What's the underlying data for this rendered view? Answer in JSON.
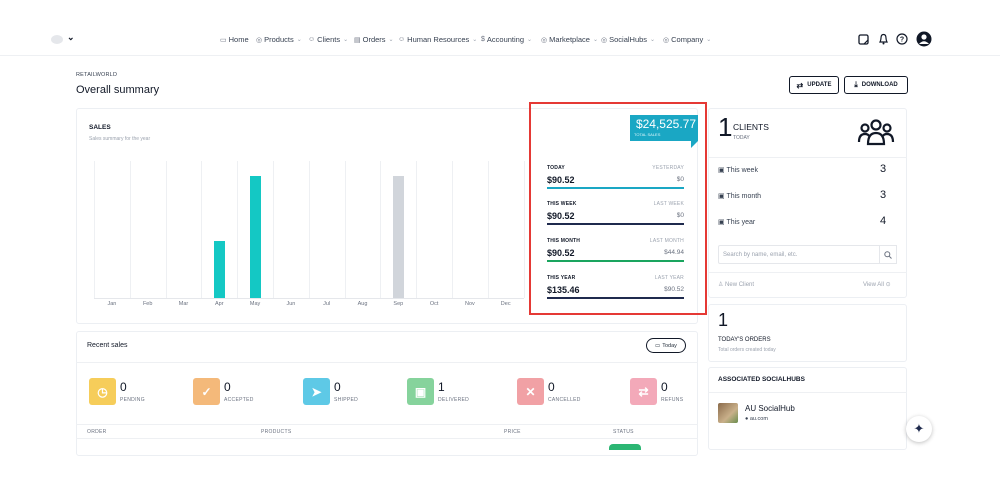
{
  "nav": {
    "items": [
      {
        "icon": "▭",
        "label": "Home",
        "caret": ""
      },
      {
        "icon": "◎",
        "label": "Products",
        "caret": "⌄"
      },
      {
        "icon": "☺",
        "label": "Clients",
        "caret": "⌄"
      },
      {
        "icon": "▤",
        "label": "Orders",
        "caret": "⌄"
      },
      {
        "icon": "☺",
        "label": "Human Resources",
        "caret": "⌄"
      },
      {
        "icon": "$",
        "label": "Accounting",
        "caret": "⌄"
      },
      {
        "icon": "◎",
        "label": "Marketplace",
        "caret": "⌄"
      },
      {
        "icon": "◎",
        "label": "SocialHubs",
        "caret": "⌄"
      },
      {
        "icon": "◎",
        "label": "Company",
        "caret": "⌄"
      }
    ],
    "logo_caret": "⌄"
  },
  "page": {
    "breadcrumb": "RETAILWORLD",
    "title": "Overall summary"
  },
  "toolbar": {
    "update_label": "UPDATE",
    "download_label": "DOWNLOAD"
  },
  "sales": {
    "title": "SALES",
    "subtitle": "Sales summary for the year"
  },
  "chart_data": {
    "type": "bar",
    "categories": [
      "Jan",
      "Feb",
      "Mar",
      "Apr",
      "May",
      "Jun",
      "Jul",
      "Aug",
      "Sep",
      "Oct",
      "Nov",
      "Dec"
    ],
    "values": [
      0,
      0,
      0,
      31,
      66,
      0,
      0,
      0,
      66,
      0,
      0,
      0
    ],
    "bar_colors": [
      "#14c8c4",
      "#14c8c4",
      "#14c8c4",
      "#14c8c4",
      "#14c8c4",
      "#14c8c4",
      "#14c8c4",
      "#14c8c4",
      "#d1d5db",
      "#14c8c4",
      "#14c8c4",
      "#14c8c4"
    ],
    "ylim": [
      0,
      66
    ]
  },
  "summary": {
    "total": "$24,525.77",
    "total_label": "TOTAL SALES",
    "stats": [
      {
        "label": "TODAY",
        "compare": "YESTERDAY",
        "value": "$90.52",
        "prev": "$0",
        "color": "#1aa7c4"
      },
      {
        "label": "THIS WEEK",
        "compare": "LAST WEEK",
        "value": "$90.52",
        "prev": "$0",
        "color": "#1f2a4d"
      },
      {
        "label": "THIS MONTH",
        "compare": "LAST MONTH",
        "value": "$90.52",
        "prev": "$44.94",
        "color": "#1aa55f"
      },
      {
        "label": "THIS YEAR",
        "compare": "LAST YEAR",
        "value": "$135.46",
        "prev": "$90.52",
        "color": "#1f2a4d"
      }
    ]
  },
  "clients": {
    "count": "1",
    "title": "CLIENTS",
    "subtitle": "TODAY",
    "rows": [
      {
        "label": "This week",
        "value": "3"
      },
      {
        "label": "This month",
        "value": "3"
      },
      {
        "label": "This year",
        "value": "4"
      }
    ],
    "search_placeholder": "Search by name, email, etc.",
    "new_client": "New Client",
    "view_all": "View All"
  },
  "orders": {
    "count": "1",
    "title": "TODAY'S ORDERS",
    "subtitle": "Total orders created today"
  },
  "socialhubs": {
    "title": "ASSOCIATED SOCIALHUBS",
    "name": "AU SocialHub",
    "domain": "au.com"
  },
  "recent": {
    "title": "Recent sales",
    "filter": "Today",
    "tiles": [
      {
        "count": "0",
        "label": "PENDING",
        "color": "#f6cd5a",
        "icon": "◷"
      },
      {
        "count": "0",
        "label": "ACCEPTED",
        "color": "#f4b97a",
        "icon": "✓"
      },
      {
        "count": "0",
        "label": "SHIPPED",
        "color": "#5ec9e6",
        "icon": "➤"
      },
      {
        "count": "1",
        "label": "DELIVERED",
        "color": "#86d39c",
        "icon": "▣"
      },
      {
        "count": "0",
        "label": "CANCELLED",
        "color": "#f1a1a5",
        "icon": "✕"
      },
      {
        "count": "0",
        "label": "REFUNS",
        "color": "#f3a9b9",
        "icon": "⇄"
      }
    ],
    "columns": [
      "ORDER",
      "PRODUCTS",
      "PRICE",
      "STATUS"
    ]
  }
}
